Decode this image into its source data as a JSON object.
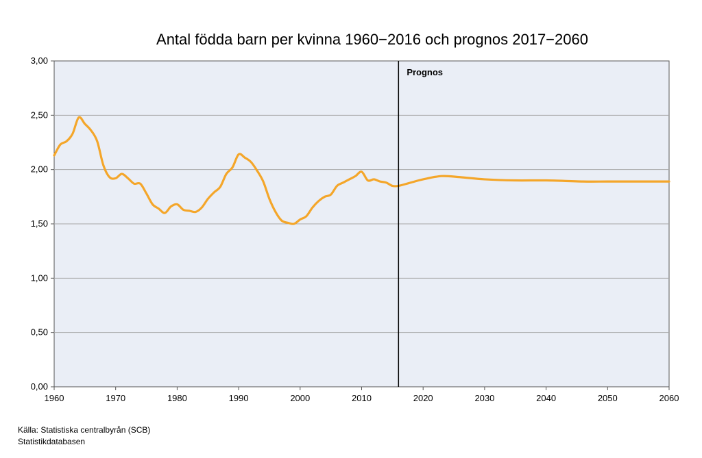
{
  "chart_data": {
    "type": "line",
    "title": "Antal födda barn per kvinna 1960−2016 och prognos 2017−2060",
    "xlabel": "",
    "ylabel": "",
    "xlim": [
      1960,
      2060
    ],
    "ylim": [
      0,
      3
    ],
    "x_ticks": [
      "1960",
      "1970",
      "1980",
      "1990",
      "2000",
      "2010",
      "2020",
      "2030",
      "2040",
      "2050",
      "2060"
    ],
    "y_ticks": [
      "0,00",
      "0,50",
      "1,00",
      "1,50",
      "2,00",
      "2,50",
      "3,00"
    ],
    "grid": true,
    "line_color": "#f4a62a",
    "annotations": [
      {
        "text": "Prognos",
        "x": 2016
      }
    ],
    "series": [
      {
        "x": [
          1960,
          1961,
          1962,
          1963,
          1964,
          1965,
          1966,
          1967,
          1968,
          1969,
          1970,
          1971,
          1972,
          1973,
          1974,
          1975,
          1976,
          1977,
          1978,
          1979,
          1980,
          1981,
          1982,
          1983,
          1984,
          1985,
          1986,
          1987,
          1988,
          1989,
          1990,
          1991,
          1992,
          1993,
          1994,
          1995,
          1996,
          1997,
          1998,
          1999,
          2000,
          2001,
          2002,
          2003,
          2004,
          2005,
          2006,
          2007,
          2008,
          2009,
          2010,
          2011,
          2012,
          2013,
          2014,
          2015,
          2016,
          2018,
          2020,
          2023,
          2026,
          2030,
          2035,
          2040,
          2046,
          2050,
          2055,
          2060
        ],
        "values": [
          2.13,
          2.23,
          2.26,
          2.33,
          2.48,
          2.42,
          2.36,
          2.26,
          2.04,
          1.93,
          1.92,
          1.96,
          1.92,
          1.87,
          1.87,
          1.78,
          1.68,
          1.64,
          1.6,
          1.66,
          1.68,
          1.63,
          1.62,
          1.61,
          1.65,
          1.73,
          1.79,
          1.84,
          1.96,
          2.02,
          2.14,
          2.11,
          2.07,
          1.99,
          1.89,
          1.73,
          1.61,
          1.53,
          1.51,
          1.5,
          1.54,
          1.57,
          1.65,
          1.71,
          1.75,
          1.77,
          1.85,
          1.88,
          1.91,
          1.94,
          1.98,
          1.9,
          1.91,
          1.89,
          1.88,
          1.85,
          1.85,
          1.88,
          1.91,
          1.94,
          1.93,
          1.91,
          1.9,
          1.9,
          1.89,
          1.89,
          1.89,
          1.89
        ]
      }
    ]
  },
  "source": {
    "line1": "Källa: Statistiska centralbyrån (SCB)",
    "line2": "Statistikdatabasen"
  }
}
